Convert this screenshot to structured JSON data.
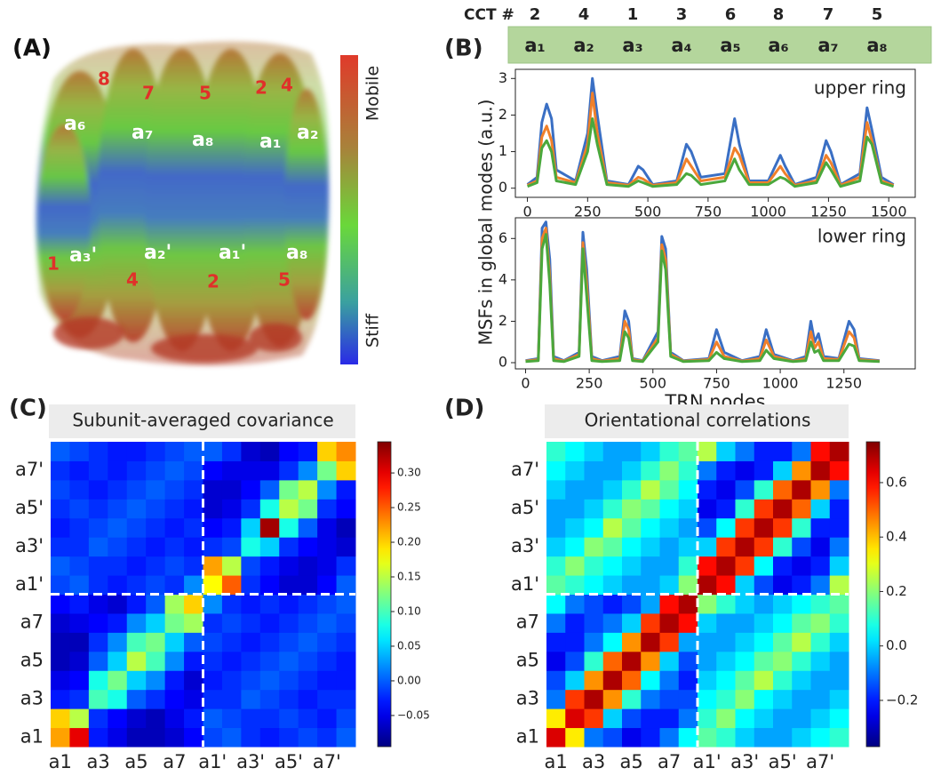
{
  "panel_a": {
    "panel_label": "(A)",
    "top_numbers": [
      "8",
      "7",
      "5",
      "2",
      "4"
    ],
    "top_subunits": [
      "a₆",
      "a₇",
      "a₈",
      "a₁",
      "a₂"
    ],
    "bottom_subunits": [
      "a₃'",
      "a₂'",
      "a₁'",
      "a₈"
    ],
    "bottom_numbers": [
      "1",
      "4",
      "2",
      "5"
    ],
    "colorbar_top": "Mobile",
    "colorbar_bottom": "Stiff"
  },
  "chart_data": [
    {
      "type": "line",
      "panel_label": "(B)",
      "annotation": "upper ring",
      "header": {
        "title": "CCT #",
        "numbers": [
          "2",
          "4",
          "1",
          "3",
          "6",
          "8",
          "7",
          "5"
        ],
        "subunits": [
          "a₁",
          "a₂",
          "a₃",
          "a₄",
          "a₅",
          "a₆",
          "a₇",
          "a₈"
        ]
      },
      "x": [
        0,
        40,
        60,
        80,
        100,
        120,
        200,
        250,
        270,
        290,
        330,
        420,
        460,
        480,
        520,
        620,
        660,
        680,
        720,
        820,
        860,
        880,
        920,
        1000,
        1050,
        1070,
        1110,
        1200,
        1240,
        1260,
        1300,
        1380,
        1410,
        1430,
        1470,
        1520
      ],
      "series": [
        {
          "color": "#3a6fc4",
          "values": [
            0.1,
            0.3,
            1.8,
            2.3,
            1.9,
            0.5,
            0.2,
            1.5,
            3.0,
            2.0,
            0.2,
            0.1,
            0.6,
            0.5,
            0.1,
            0.2,
            1.2,
            1.0,
            0.3,
            0.4,
            1.9,
            1.2,
            0.2,
            0.2,
            0.9,
            0.6,
            0.1,
            0.3,
            1.3,
            1.0,
            0.1,
            0.4,
            2.2,
            1.6,
            0.3,
            0.1
          ]
        },
        {
          "color": "#f0802a",
          "values": [
            0.08,
            0.2,
            1.4,
            1.7,
            1.3,
            0.3,
            0.15,
            1.2,
            2.6,
            1.5,
            0.15,
            0.08,
            0.3,
            0.25,
            0.08,
            0.15,
            0.8,
            0.6,
            0.2,
            0.3,
            1.1,
            0.9,
            0.15,
            0.15,
            0.6,
            0.4,
            0.08,
            0.2,
            0.9,
            0.7,
            0.08,
            0.3,
            1.8,
            1.3,
            0.2,
            0.08
          ]
        },
        {
          "color": "#4aa83c",
          "values": [
            0.05,
            0.15,
            1.1,
            1.3,
            1.0,
            0.2,
            0.1,
            1.0,
            1.9,
            1.2,
            0.1,
            0.05,
            0.2,
            0.15,
            0.05,
            0.1,
            0.4,
            0.35,
            0.1,
            0.2,
            0.8,
            0.5,
            0.1,
            0.1,
            0.3,
            0.25,
            0.05,
            0.15,
            0.7,
            0.5,
            0.05,
            0.2,
            1.4,
            1.2,
            0.15,
            0.05
          ]
        }
      ],
      "xlim": [
        -50,
        1610
      ],
      "ylim": [
        -0.25,
        3.25
      ],
      "xticks": [
        0,
        250,
        500,
        750,
        1000,
        1250,
        1500
      ],
      "yticks": [
        0,
        1,
        2,
        3
      ]
    },
    {
      "type": "line",
      "annotation": "lower ring",
      "ylabel": "MSFs in global modes (a.u.)",
      "xlabel": "TRN nodes",
      "x": [
        0,
        50,
        65,
        80,
        95,
        110,
        150,
        210,
        225,
        240,
        260,
        300,
        370,
        390,
        405,
        420,
        460,
        520,
        535,
        550,
        570,
        620,
        720,
        750,
        780,
        850,
        920,
        945,
        975,
        1050,
        1100,
        1120,
        1135,
        1150,
        1170,
        1230,
        1270,
        1290,
        1310,
        1390
      ],
      "series": [
        {
          "color": "#3a6fc4",
          "values": [
            0.1,
            0.2,
            6.5,
            6.8,
            5.0,
            0.3,
            0.1,
            0.5,
            6.3,
            4.5,
            0.3,
            0.1,
            0.3,
            2.5,
            2.0,
            0.2,
            0.1,
            1.5,
            6.1,
            5.5,
            0.5,
            0.1,
            0.2,
            1.6,
            0.5,
            0.1,
            0.3,
            1.6,
            0.4,
            0.1,
            0.3,
            2.0,
            1.0,
            1.4,
            0.3,
            0.2,
            2.0,
            1.6,
            0.2,
            0.1
          ]
        },
        {
          "color": "#f0802a",
          "values": [
            0.08,
            0.15,
            6.0,
            6.5,
            4.2,
            0.2,
            0.08,
            0.4,
            5.8,
            3.8,
            0.2,
            0.08,
            0.2,
            2.0,
            1.6,
            0.15,
            0.08,
            1.2,
            5.7,
            5.0,
            0.4,
            0.08,
            0.15,
            1.0,
            0.3,
            0.08,
            0.2,
            1.1,
            0.3,
            0.08,
            0.2,
            1.5,
            0.7,
            1.0,
            0.2,
            0.15,
            1.5,
            1.2,
            0.15,
            0.08
          ]
        },
        {
          "color": "#4aa83c",
          "values": [
            0.05,
            0.1,
            5.5,
            6.2,
            3.8,
            0.1,
            0.05,
            0.3,
            5.5,
            3.2,
            0.1,
            0.05,
            0.1,
            1.5,
            1.2,
            0.1,
            0.05,
            1.0,
            5.4,
            4.5,
            0.3,
            0.05,
            0.1,
            0.5,
            0.2,
            0.05,
            0.1,
            0.6,
            0.2,
            0.05,
            0.1,
            1.0,
            0.5,
            0.6,
            0.1,
            0.1,
            0.9,
            0.8,
            0.1,
            0.05
          ]
        }
      ],
      "xlim": [
        -40,
        1530
      ],
      "ylim": [
        -0.3,
        7.0
      ],
      "xticks": [
        0,
        250,
        500,
        750,
        1000,
        1250
      ],
      "yticks": [
        0,
        2,
        4,
        6
      ]
    },
    {
      "type": "heatmap",
      "panel_label": "(C)",
      "title": "Subunit-averaged covariance",
      "colormap": "jet",
      "categories": [
        "a1",
        null,
        "a3",
        null,
        "a5",
        null,
        "a7",
        null,
        "a1'",
        null,
        "a3'",
        null,
        "a5'",
        null,
        "a7'",
        null
      ],
      "z": [
        [
          0.22,
          0.3,
          -0.03,
          -0.05,
          -0.07,
          -0.07,
          -0.06,
          -0.04,
          -0.01,
          0.0,
          -0.02,
          -0.03,
          -0.02,
          -0.01,
          -0.02,
          0.0
        ],
        [
          0.2,
          0.15,
          -0.02,
          -0.04,
          -0.06,
          -0.07,
          -0.05,
          -0.03,
          0.0,
          -0.01,
          -0.02,
          -0.02,
          -0.01,
          -0.02,
          -0.03,
          -0.01
        ],
        [
          -0.03,
          -0.02,
          0.1,
          0.08,
          0.0,
          -0.02,
          -0.04,
          -0.05,
          -0.02,
          -0.02,
          0.0,
          -0.01,
          -0.02,
          -0.03,
          -0.02,
          -0.02
        ],
        [
          -0.05,
          -0.04,
          0.08,
          0.12,
          0.05,
          0.02,
          -0.03,
          -0.06,
          -0.03,
          -0.02,
          -0.01,
          0.0,
          -0.01,
          -0.02,
          -0.03,
          -0.03
        ],
        [
          -0.07,
          -0.06,
          0.0,
          0.05,
          0.15,
          0.1,
          0.02,
          -0.03,
          -0.02,
          -0.03,
          -0.02,
          -0.01,
          0.0,
          -0.01,
          -0.02,
          -0.03
        ],
        [
          -0.07,
          -0.07,
          -0.02,
          0.02,
          0.1,
          0.12,
          0.05,
          0.0,
          -0.01,
          -0.02,
          -0.03,
          -0.02,
          -0.01,
          0.0,
          -0.01,
          -0.02
        ],
        [
          -0.06,
          -0.05,
          -0.04,
          -0.03,
          0.02,
          0.05,
          0.12,
          0.14,
          -0.02,
          -0.01,
          -0.02,
          -0.03,
          -0.02,
          -0.01,
          0.0,
          -0.01
        ],
        [
          -0.04,
          -0.03,
          -0.05,
          -0.06,
          -0.03,
          0.0,
          0.14,
          0.2,
          0.02,
          -0.02,
          -0.03,
          -0.02,
          -0.03,
          -0.02,
          -0.01,
          0.0
        ],
        [
          -0.01,
          0.0,
          -0.02,
          -0.03,
          -0.02,
          -0.01,
          -0.02,
          0.02,
          0.18,
          0.25,
          -0.02,
          -0.04,
          -0.06,
          -0.06,
          -0.04,
          0.0
        ],
        [
          0.0,
          -0.01,
          -0.02,
          -0.02,
          -0.03,
          -0.02,
          -0.01,
          -0.02,
          0.22,
          0.15,
          -0.01,
          -0.03,
          -0.05,
          -0.06,
          -0.05,
          -0.02
        ],
        [
          -0.02,
          -0.02,
          0.0,
          -0.01,
          -0.02,
          -0.03,
          -0.02,
          -0.03,
          -0.02,
          -0.01,
          0.08,
          0.05,
          -0.02,
          -0.04,
          -0.05,
          -0.06
        ],
        [
          -0.03,
          -0.02,
          -0.01,
          0.0,
          -0.01,
          -0.02,
          -0.03,
          -0.02,
          -0.04,
          -0.03,
          0.05,
          0.33,
          0.08,
          0.0,
          -0.05,
          -0.07
        ],
        [
          -0.02,
          -0.01,
          -0.02,
          -0.01,
          0.0,
          -0.01,
          -0.02,
          -0.03,
          -0.06,
          -0.05,
          -0.02,
          0.08,
          0.15,
          0.12,
          -0.02,
          -0.04
        ],
        [
          -0.01,
          -0.02,
          -0.03,
          -0.02,
          -0.01,
          0.0,
          -0.01,
          -0.02,
          -0.06,
          -0.06,
          -0.04,
          0.0,
          0.12,
          0.15,
          0.02,
          -0.03
        ],
        [
          -0.02,
          -0.03,
          -0.02,
          -0.03,
          -0.02,
          -0.01,
          0.0,
          -0.01,
          -0.04,
          -0.05,
          -0.05,
          -0.05,
          -0.02,
          0.02,
          0.12,
          0.2
        ],
        [
          0.0,
          -0.01,
          -0.02,
          -0.03,
          -0.03,
          -0.02,
          -0.01,
          0.0,
          0.0,
          -0.02,
          -0.06,
          -0.07,
          -0.04,
          -0.03,
          0.2,
          0.23
        ]
      ],
      "zlim": [
        -0.095,
        0.345
      ],
      "zticks": [
        {
          "value": -0.05,
          "label": "−0.05"
        },
        {
          "value": 0,
          "label": "0.00"
        },
        {
          "value": 0.05,
          "label": "0.05"
        },
        {
          "value": 0.1,
          "label": "0.10"
        },
        {
          "value": 0.15,
          "label": "0.15"
        },
        {
          "value": 0.2,
          "label": "0.20"
        },
        {
          "value": 0.25,
          "label": "0.25"
        },
        {
          "value": 0.3,
          "label": "0.30"
        }
      ]
    },
    {
      "type": "heatmap",
      "panel_label": "(D)",
      "title": "Orientational correlations",
      "colormap": "jet",
      "categories": [
        "a1",
        null,
        "a3",
        null,
        "a5",
        null,
        "a7",
        null,
        "a1'",
        null,
        "a3'",
        null,
        "a5'",
        null,
        "a7'",
        null
      ],
      "z": [
        [
          0.65,
          0.35,
          -0.1,
          -0.15,
          -0.25,
          -0.2,
          -0.1,
          0.05,
          0.15,
          0.1,
          0.0,
          -0.05,
          -0.05,
          0.0,
          0.05,
          0.1
        ],
        [
          0.35,
          0.65,
          0.55,
          0.0,
          -0.15,
          -0.2,
          -0.2,
          -0.1,
          0.1,
          0.2,
          0.05,
          0.0,
          -0.05,
          -0.05,
          0.0,
          0.05
        ],
        [
          -0.1,
          0.55,
          0.7,
          0.45,
          0.1,
          -0.1,
          -0.15,
          -0.15,
          0.05,
          0.1,
          0.2,
          0.05,
          0.0,
          -0.05,
          -0.05,
          0.0
        ],
        [
          -0.15,
          0.0,
          0.45,
          0.7,
          0.5,
          0.05,
          -0.1,
          -0.2,
          0.0,
          0.05,
          0.15,
          0.25,
          0.1,
          0.0,
          -0.05,
          -0.05
        ],
        [
          -0.25,
          -0.15,
          0.1,
          0.5,
          0.7,
          0.45,
          0.0,
          -0.15,
          -0.05,
          0.0,
          0.05,
          0.15,
          0.2,
          0.1,
          0.0,
          -0.05
        ],
        [
          -0.2,
          -0.2,
          -0.1,
          0.05,
          0.45,
          0.7,
          0.55,
          -0.05,
          -0.05,
          -0.05,
          0.0,
          0.05,
          0.15,
          0.25,
          0.1,
          0.0
        ],
        [
          -0.1,
          -0.2,
          -0.15,
          -0.1,
          0.0,
          0.55,
          0.7,
          0.6,
          0.0,
          -0.05,
          -0.05,
          0.0,
          0.05,
          0.15,
          0.2,
          0.1
        ],
        [
          0.05,
          -0.1,
          -0.15,
          -0.2,
          -0.15,
          -0.05,
          0.6,
          0.7,
          0.2,
          0.1,
          0.0,
          -0.05,
          0.0,
          0.05,
          0.1,
          0.15
        ],
        [
          0.15,
          0.1,
          0.05,
          0.0,
          -0.05,
          -0.05,
          0.0,
          0.2,
          0.7,
          0.6,
          0.0,
          -0.15,
          -0.25,
          -0.2,
          -0.1,
          0.25
        ],
        [
          0.1,
          0.2,
          0.1,
          0.05,
          0.0,
          -0.05,
          -0.05,
          0.1,
          0.6,
          0.7,
          0.55,
          0.05,
          -0.2,
          -0.25,
          -0.2,
          0.0
        ],
        [
          0.0,
          0.05,
          0.2,
          0.15,
          0.05,
          0.0,
          -0.05,
          0.0,
          0.0,
          0.55,
          0.7,
          0.55,
          0.1,
          -0.15,
          -0.25,
          -0.1
        ],
        [
          -0.05,
          0.0,
          0.05,
          0.25,
          0.15,
          0.05,
          0.0,
          -0.05,
          -0.15,
          0.05,
          0.55,
          0.7,
          0.55,
          0.1,
          -0.2,
          -0.2
        ],
        [
          -0.05,
          -0.05,
          0.0,
          0.1,
          0.2,
          0.15,
          0.05,
          0.0,
          -0.25,
          -0.2,
          0.1,
          0.55,
          0.7,
          0.5,
          0.0,
          -0.2
        ],
        [
          0.0,
          -0.05,
          -0.05,
          0.0,
          0.1,
          0.25,
          0.15,
          0.05,
          -0.2,
          -0.25,
          -0.15,
          0.1,
          0.5,
          0.7,
          0.45,
          -0.1
        ],
        [
          0.05,
          0.0,
          -0.05,
          -0.05,
          0.0,
          0.1,
          0.2,
          0.1,
          -0.1,
          -0.2,
          -0.25,
          -0.2,
          0.0,
          0.45,
          0.7,
          0.6
        ],
        [
          0.1,
          0.05,
          0.0,
          -0.05,
          -0.05,
          0.0,
          0.1,
          0.15,
          0.25,
          0.0,
          -0.1,
          -0.2,
          -0.2,
          -0.1,
          0.6,
          0.7
        ]
      ],
      "zlim": [
        -0.37,
        0.75
      ],
      "zticks": [
        {
          "value": -0.2,
          "label": "−0.2"
        },
        {
          "value": 0,
          "label": "0.0"
        },
        0.2,
        0.4,
        0.6
      ]
    }
  ]
}
